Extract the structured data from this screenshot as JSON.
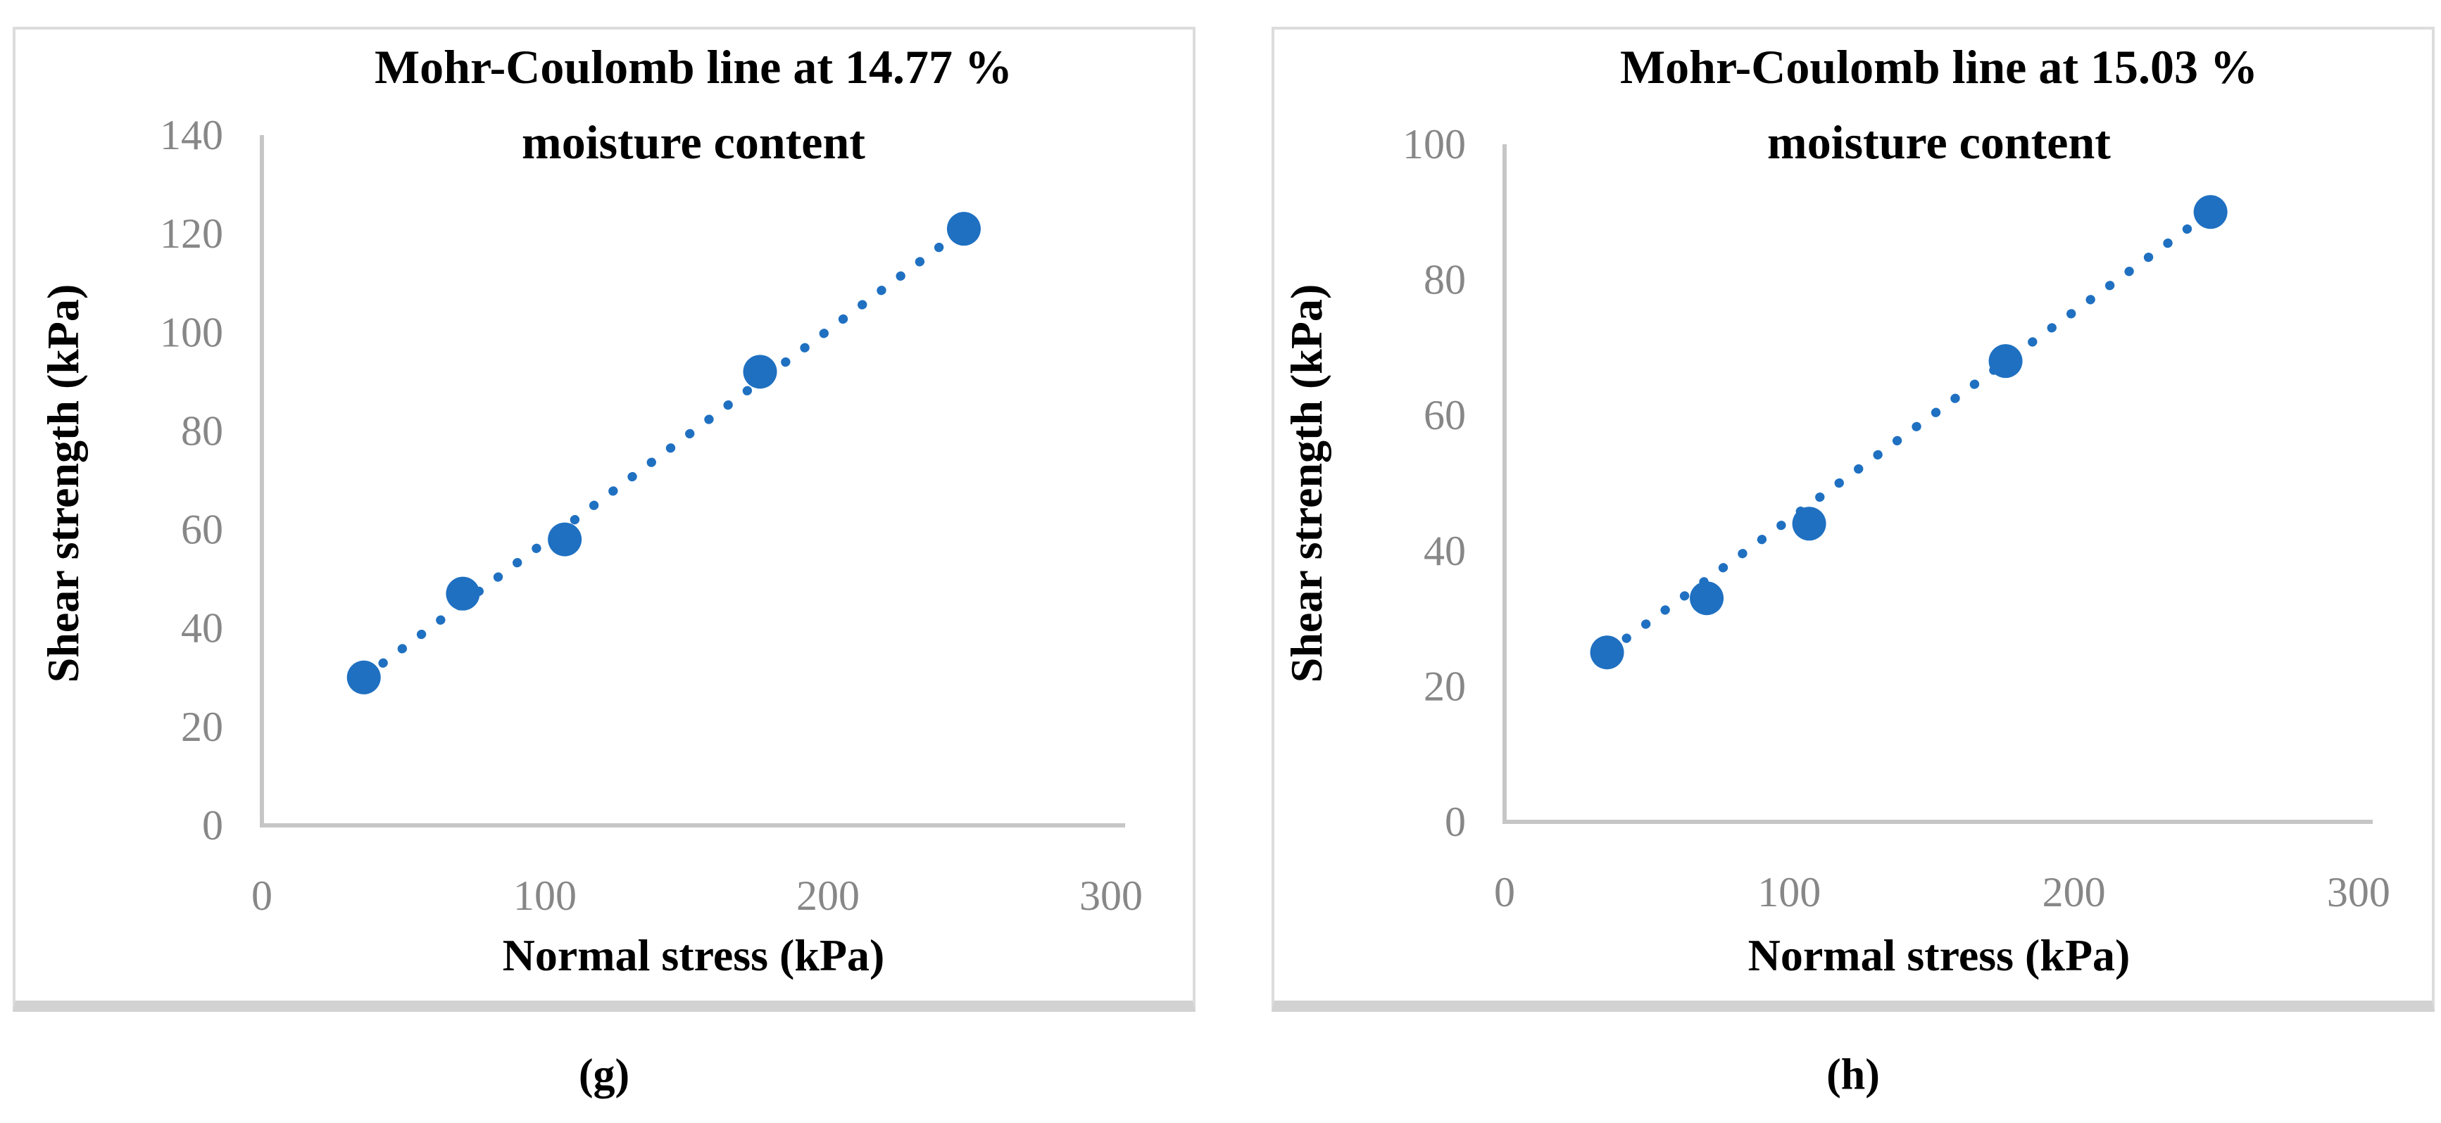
{
  "colors": {
    "marker_blue": "#1F70C1",
    "axis_gray": "#C6C6C6",
    "tick_gray": "#878787",
    "text_black": "#000000",
    "panel_border": "#DCDCDC"
  },
  "chart_data": [
    {
      "type": "scatter",
      "panel_id": "g",
      "caption": "(g)",
      "title_line1": "Mohr-Coulomb line at 14.77 %",
      "title_line2": "moisture content",
      "xlabel": "Normal stress (kPa)",
      "ylabel": "Shear strength (kPa)",
      "x": [
        36,
        71,
        107,
        176,
        248
      ],
      "y": [
        30,
        47,
        58,
        92,
        121
      ],
      "x_ticks": [
        "0",
        "100",
        "200",
        "300"
      ],
      "y_ticks": [
        "0",
        "20",
        "40",
        "60",
        "80",
        "100",
        "120",
        "140"
      ],
      "xlim": [
        0,
        305
      ],
      "ylim": [
        0,
        140
      ],
      "marker": "circle",
      "trendline_style": "dotted",
      "legend": "none",
      "grid": "off"
    },
    {
      "type": "scatter",
      "panel_id": "h",
      "caption": "(h)",
      "title_line1": "Mohr-Coulomb line at 15.03 %",
      "title_line2": "moisture content",
      "xlabel": "Normal stress (kPa)",
      "ylabel": "Shear strength (kPa)",
      "x": [
        36,
        71,
        107,
        176,
        248
      ],
      "y": [
        25,
        33,
        44,
        68,
        90
      ],
      "x_ticks": [
        "0",
        "100",
        "200",
        "300"
      ],
      "y_ticks": [
        "0",
        "20",
        "40",
        "60",
        "80",
        "100"
      ],
      "xlim": [
        0,
        305
      ],
      "ylim": [
        0,
        100
      ],
      "marker": "circle",
      "trendline_style": "dotted",
      "legend": "none",
      "grid": "off"
    }
  ]
}
